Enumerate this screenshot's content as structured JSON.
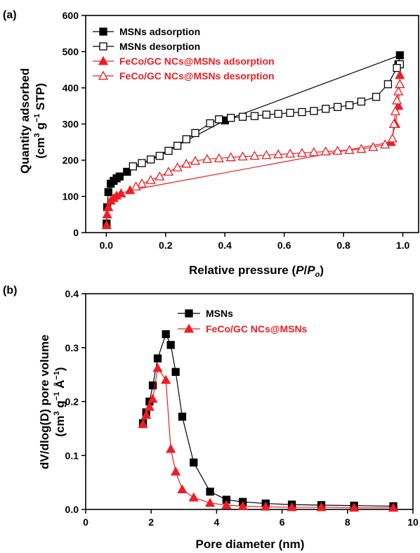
{
  "chart_data": [
    {
      "type": "scatter",
      "panel_label": "(a)",
      "xlabel_parts": [
        "Relative pressure (",
        "P",
        "/",
        "P",
        "o",
        ")"
      ],
      "ylabel_line1": "Quantity adsorbed",
      "ylabel_line2_parts": [
        "(cm",
        "3",
        " g",
        "−1",
        " STP)"
      ],
      "xlim": [
        0.0,
        1.0
      ],
      "ylim": [
        0,
        600
      ],
      "xticks": [
        "0.0",
        "0.2",
        "0.4",
        "0.6",
        "0.8",
        "1.0"
      ],
      "yticks": [
        "0",
        "100",
        "200",
        "300",
        "400",
        "500",
        "600"
      ],
      "grid": false,
      "legend_position": "top-left",
      "series": [
        {
          "name": "MSNs adsorption",
          "color": "#000000",
          "marker": "square-filled",
          "x": [
            0.001,
            0.003,
            0.007,
            0.015,
            0.025,
            0.035,
            0.045,
            0.07,
            0.4,
            0.99,
            0.985
          ],
          "y": [
            25,
            70,
            112,
            135,
            143,
            150,
            155,
            168,
            310,
            490,
            465
          ]
        },
        {
          "name": "MSNs desorption",
          "color": "#000000",
          "marker": "square-open",
          "x": [
            0.99,
            0.98,
            0.95,
            0.91,
            0.86,
            0.82,
            0.78,
            0.74,
            0.7,
            0.66,
            0.62,
            0.58,
            0.54,
            0.5,
            0.46,
            0.42,
            0.38,
            0.35,
            0.3,
            0.27,
            0.24,
            0.21,
            0.18,
            0.15,
            0.12,
            0.09
          ],
          "y": [
            465,
            455,
            410,
            375,
            362,
            352,
            347,
            342,
            336,
            333,
            331,
            328,
            326,
            322,
            320,
            317,
            313,
            302,
            275,
            258,
            240,
            226,
            212,
            202,
            192,
            183
          ]
        },
        {
          "name": "FeCo/GC NCs@MSNs adsorption",
          "color": "#ee1d23",
          "marker": "triangle-filled",
          "x": [
            0.001,
            0.003,
            0.007,
            0.015,
            0.025,
            0.035,
            0.05,
            0.08,
            0.96,
            0.975,
            0.985,
            0.99,
            0.99
          ],
          "y": [
            20,
            50,
            70,
            88,
            95,
            102,
            108,
            117,
            250,
            300,
            350,
            410,
            435
          ]
        },
        {
          "name": "FeCo/GC NCs@MSNs desorption",
          "color": "#ee1d23",
          "marker": "triangle-open",
          "x": [
            0.99,
            0.985,
            0.98,
            0.975,
            0.97,
            0.965,
            0.94,
            0.9,
            0.86,
            0.82,
            0.78,
            0.74,
            0.7,
            0.66,
            0.62,
            0.58,
            0.54,
            0.5,
            0.46,
            0.42,
            0.38,
            0.34,
            0.3,
            0.27,
            0.24,
            0.21,
            0.18,
            0.15,
            0.12,
            0.1
          ],
          "y": [
            410,
            390,
            365,
            335,
            300,
            260,
            243,
            236,
            231,
            228,
            226,
            224,
            222,
            220,
            218,
            216,
            214,
            212,
            210,
            208,
            205,
            203,
            198,
            190,
            180,
            168,
            155,
            145,
            135,
            127
          ]
        }
      ]
    },
    {
      "type": "line",
      "panel_label": "(b)",
      "xlabel": "Pore diameter (nm)",
      "ylabel_line1": "dV/dlog(D) pore volume",
      "ylabel_line2_parts": [
        "(cm",
        "3",
        " g",
        "−1",
        " Å",
        "−1",
        ")"
      ],
      "xlim": [
        0,
        10
      ],
      "ylim": [
        0,
        0.4
      ],
      "xticks": [
        "0",
        "2",
        "4",
        "6",
        "8",
        "10"
      ],
      "yticks": [
        "0.0",
        "0.1",
        "0.2",
        "0.3",
        "0.4"
      ],
      "grid": false,
      "legend_position": "top-right",
      "series": [
        {
          "name": "MSNs",
          "color": "#000000",
          "marker": "square-filled",
          "x": [
            1.75,
            1.85,
            1.95,
            2.05,
            2.2,
            2.45,
            2.6,
            2.75,
            2.95,
            3.3,
            3.8,
            4.3,
            4.8,
            5.5,
            6.3,
            7.2,
            8.2,
            9.4
          ],
          "y": [
            0.16,
            0.18,
            0.2,
            0.23,
            0.28,
            0.325,
            0.305,
            0.255,
            0.172,
            0.087,
            0.033,
            0.018,
            0.014,
            0.011,
            0.009,
            0.008,
            0.007,
            0.006
          ]
        },
        {
          "name": "FeCo/GC NCs@MSNs",
          "color": "#ee1d23",
          "marker": "triangle-filled",
          "x": [
            1.75,
            1.85,
            1.95,
            2.05,
            2.2,
            2.45,
            2.6,
            2.75,
            2.95,
            3.3,
            3.8,
            4.3,
            4.8,
            5.5,
            6.3,
            7.2,
            8.2,
            9.4
          ],
          "y": [
            0.158,
            0.175,
            0.19,
            0.205,
            0.262,
            0.24,
            0.112,
            0.07,
            0.037,
            0.022,
            0.012,
            0.008,
            0.006,
            0.005,
            0.004,
            0.004,
            0.003,
            0.003
          ]
        }
      ]
    }
  ]
}
